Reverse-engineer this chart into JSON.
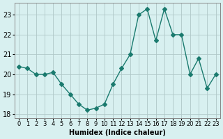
{
  "x": [
    0,
    1,
    2,
    3,
    4,
    5,
    6,
    7,
    8,
    9,
    10,
    11,
    12,
    13,
    14,
    15,
    16,
    17,
    18,
    19,
    20,
    21,
    22,
    23
  ],
  "y": [
    20.4,
    20.3,
    20.0,
    20.0,
    20.1,
    19.5,
    19.0,
    18.5,
    18.2,
    18.3,
    18.5,
    19.5,
    20.3,
    21.0,
    23.0,
    23.3,
    21.7,
    23.3,
    22.0,
    22.0,
    20.0,
    20.8,
    19.3,
    20.0
  ],
  "line_color": "#1a7a6e",
  "marker": "D",
  "marker_size": 3,
  "bg_color": "#d8f0f0",
  "grid_color": "#b0c8c8",
  "xlabel": "Humidex (Indice chaleur)",
  "ylabel": "",
  "title": "",
  "ylim": [
    17.8,
    23.6
  ],
  "xlim": [
    -0.5,
    23.5
  ],
  "yticks": [
    18,
    19,
    20,
    21,
    22,
    23
  ],
  "xtick_labels": [
    "0",
    "1",
    "2",
    "3",
    "4",
    "5",
    "6",
    "7",
    "8",
    "9",
    "10",
    "11",
    "12",
    "13",
    "14",
    "15",
    "16",
    "17",
    "18",
    "19",
    "20",
    "21",
    "22",
    "23"
  ]
}
